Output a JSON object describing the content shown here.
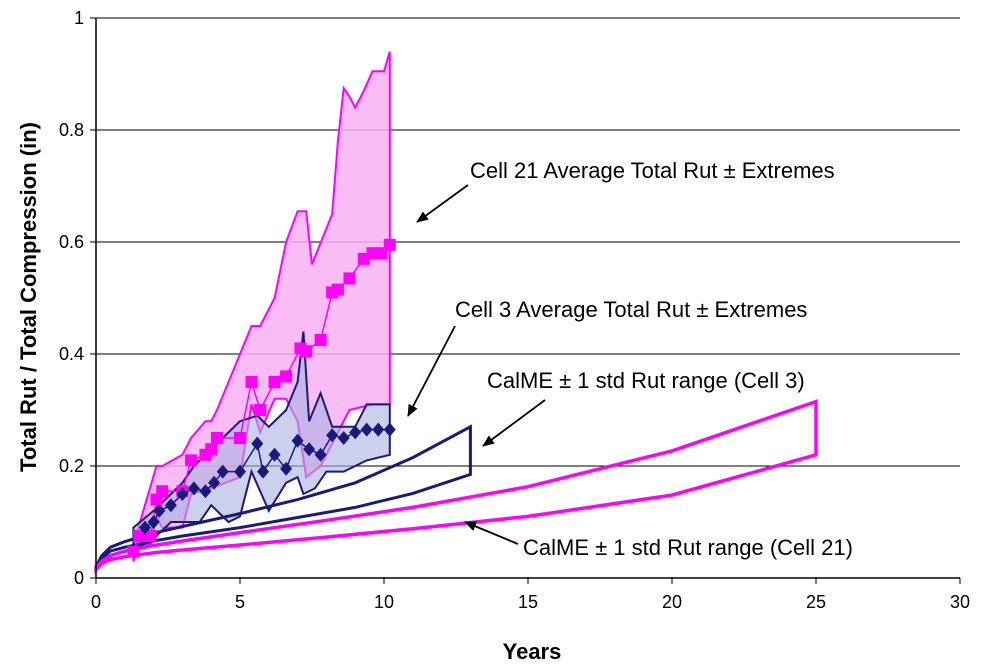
{
  "chart_data": {
    "type": "line",
    "title": "",
    "xlabel": "Years",
    "ylabel": "Total Rut / Total Compression (in)",
    "xlim": [
      0,
      30
    ],
    "ylim": [
      0,
      1
    ],
    "x_ticks": [
      "0",
      "5",
      "10",
      "15",
      "20",
      "25",
      "30"
    ],
    "y_ticks": [
      "0",
      "0.2",
      "0.4",
      "0.6",
      "0.8",
      "1"
    ],
    "grid": "horizontal",
    "colors": {
      "cell21": "#ff00ff",
      "cell21_fill": "#f9b0f3",
      "cell3": "#1a1a7a",
      "cell3_fill": "#a8b3df"
    },
    "series": [
      {
        "name": "Cell 21 Average Total Rut ± Extremes",
        "marker": "square",
        "points": [
          [
            1.3,
            0.047
          ],
          [
            1.5,
            0.075
          ],
          [
            1.7,
            0.075
          ],
          [
            1.9,
            0.075
          ],
          [
            2.1,
            0.14
          ],
          [
            2.3,
            0.155
          ],
          [
            3.0,
            0.155
          ],
          [
            3.3,
            0.21
          ],
          [
            3.8,
            0.22
          ],
          [
            4.0,
            0.23
          ],
          [
            4.2,
            0.25
          ],
          [
            5.0,
            0.25
          ],
          [
            5.4,
            0.35
          ],
          [
            5.7,
            0.3
          ],
          [
            6.2,
            0.35
          ],
          [
            6.6,
            0.36
          ],
          [
            7.1,
            0.41
          ],
          [
            7.3,
            0.405
          ],
          [
            7.8,
            0.425
          ],
          [
            8.2,
            0.51
          ],
          [
            8.4,
            0.515
          ],
          [
            8.8,
            0.535
          ],
          [
            9.3,
            0.57
          ],
          [
            9.6,
            0.58
          ],
          [
            9.9,
            0.58
          ],
          [
            10.2,
            0.595
          ]
        ],
        "upper": [
          [
            1.3,
            0.06
          ],
          [
            2.1,
            0.2
          ],
          [
            2.3,
            0.2
          ],
          [
            3.0,
            0.22
          ],
          [
            3.3,
            0.25
          ],
          [
            3.8,
            0.28
          ],
          [
            4.0,
            0.28
          ],
          [
            4.2,
            0.3
          ],
          [
            5.0,
            0.4
          ],
          [
            5.4,
            0.45
          ],
          [
            5.7,
            0.45
          ],
          [
            6.2,
            0.5
          ],
          [
            6.6,
            0.6
          ],
          [
            7.0,
            0.655
          ],
          [
            7.3,
            0.655
          ],
          [
            7.5,
            0.56
          ],
          [
            8.2,
            0.65
          ],
          [
            8.4,
            0.78
          ],
          [
            8.6,
            0.875
          ],
          [
            8.8,
            0.86
          ],
          [
            9.0,
            0.84
          ],
          [
            9.3,
            0.87
          ],
          [
            9.6,
            0.905
          ],
          [
            10.0,
            0.905
          ],
          [
            10.2,
            0.94
          ]
        ],
        "lower": [
          [
            1.3,
            0.03
          ],
          [
            1.5,
            0.06
          ],
          [
            1.9,
            0.06
          ],
          [
            2.1,
            0.11
          ],
          [
            2.3,
            0.09
          ],
          [
            3.0,
            0.09
          ],
          [
            3.3,
            0.15
          ],
          [
            4.0,
            0.16
          ],
          [
            5.0,
            0.18
          ],
          [
            5.4,
            0.31
          ],
          [
            5.7,
            0.26
          ],
          [
            6.2,
            0.32
          ],
          [
            6.6,
            0.32
          ],
          [
            7.0,
            0.28
          ],
          [
            7.3,
            0.18
          ],
          [
            7.8,
            0.2
          ],
          [
            8.2,
            0.24
          ],
          [
            8.8,
            0.3
          ],
          [
            9.6,
            0.31
          ],
          [
            10.2,
            0.31
          ]
        ]
      },
      {
        "name": "Cell 3 Average Total Rut ± Extremes",
        "marker": "diamond",
        "points": [
          [
            1.7,
            0.09
          ],
          [
            2.0,
            0.1
          ],
          [
            2.2,
            0.12
          ],
          [
            2.6,
            0.13
          ],
          [
            3.0,
            0.15
          ],
          [
            3.4,
            0.16
          ],
          [
            3.8,
            0.155
          ],
          [
            4.1,
            0.17
          ],
          [
            4.4,
            0.19
          ],
          [
            5.0,
            0.19
          ],
          [
            5.6,
            0.24
          ],
          [
            5.8,
            0.19
          ],
          [
            6.2,
            0.22
          ],
          [
            6.6,
            0.195
          ],
          [
            7.0,
            0.245
          ],
          [
            7.4,
            0.23
          ],
          [
            7.8,
            0.22
          ],
          [
            8.2,
            0.255
          ],
          [
            8.6,
            0.25
          ],
          [
            9.0,
            0.26
          ],
          [
            9.4,
            0.265
          ],
          [
            9.8,
            0.265
          ],
          [
            10.2,
            0.265
          ]
        ],
        "upper": [
          [
            1.3,
            0.09
          ],
          [
            2.0,
            0.12
          ],
          [
            2.6,
            0.15
          ],
          [
            3.0,
            0.17
          ],
          [
            3.4,
            0.2
          ],
          [
            4.0,
            0.23
          ],
          [
            4.6,
            0.26
          ],
          [
            5.0,
            0.28
          ],
          [
            5.6,
            0.29
          ],
          [
            6.0,
            0.27
          ],
          [
            6.6,
            0.3
          ],
          [
            7.0,
            0.35
          ],
          [
            7.2,
            0.44
          ],
          [
            7.4,
            0.28
          ],
          [
            7.8,
            0.33
          ],
          [
            8.2,
            0.27
          ],
          [
            8.6,
            0.27
          ],
          [
            9.0,
            0.27
          ],
          [
            9.4,
            0.31
          ],
          [
            10.2,
            0.31
          ]
        ],
        "lower": [
          [
            1.3,
            0.05
          ],
          [
            2.0,
            0.07
          ],
          [
            2.6,
            0.1
          ],
          [
            3.0,
            0.1
          ],
          [
            3.6,
            0.1
          ],
          [
            4.0,
            0.13
          ],
          [
            4.6,
            0.1
          ],
          [
            5.0,
            0.11
          ],
          [
            5.4,
            0.19
          ],
          [
            6.0,
            0.12
          ],
          [
            6.6,
            0.17
          ],
          [
            7.0,
            0.18
          ],
          [
            7.2,
            0.15
          ],
          [
            7.6,
            0.16
          ],
          [
            8.0,
            0.19
          ],
          [
            8.6,
            0.19
          ],
          [
            9.4,
            0.21
          ],
          [
            10.2,
            0.22
          ]
        ]
      },
      {
        "name": "CalME ± 1 std Rut range (Cell 3)",
        "upper": [
          [
            0,
            0.02
          ],
          [
            0.2,
            0.04
          ],
          [
            0.5,
            0.055
          ],
          [
            1,
            0.065
          ],
          [
            2,
            0.08
          ],
          [
            3,
            0.092
          ],
          [
            5,
            0.115
          ],
          [
            7,
            0.14
          ],
          [
            9,
            0.17
          ],
          [
            11,
            0.215
          ],
          [
            13,
            0.27
          ]
        ],
        "lower": [
          [
            0,
            0.018
          ],
          [
            0.2,
            0.035
          ],
          [
            0.5,
            0.048
          ],
          [
            1,
            0.055
          ],
          [
            2,
            0.066
          ],
          [
            3,
            0.075
          ],
          [
            5,
            0.09
          ],
          [
            7,
            0.108
          ],
          [
            9,
            0.126
          ],
          [
            11,
            0.151
          ],
          [
            13,
            0.185
          ]
        ]
      },
      {
        "name": "CalME ± 1 std Rut range (Cell 21)",
        "upper": [
          [
            0,
            0.018
          ],
          [
            0.2,
            0.03
          ],
          [
            0.5,
            0.04
          ],
          [
            1,
            0.048
          ],
          [
            2,
            0.058
          ],
          [
            3,
            0.066
          ],
          [
            5,
            0.081
          ],
          [
            8,
            0.103
          ],
          [
            11,
            0.126
          ],
          [
            15,
            0.163
          ],
          [
            20,
            0.227
          ],
          [
            25,
            0.315
          ]
        ],
        "lower": [
          [
            0,
            0.015
          ],
          [
            0.2,
            0.026
          ],
          [
            0.5,
            0.033
          ],
          [
            1,
            0.038
          ],
          [
            2,
            0.045
          ],
          [
            3,
            0.05
          ],
          [
            5,
            0.059
          ],
          [
            8,
            0.073
          ],
          [
            11,
            0.088
          ],
          [
            15,
            0.11
          ],
          [
            20,
            0.148
          ],
          [
            25,
            0.22
          ]
        ]
      }
    ],
    "annotations": [
      {
        "text": "Cell 21 Average Total Rut ± Extremes"
      },
      {
        "text": "Cell 3 Average Total Rut ± Extremes"
      },
      {
        "text": "CalME ± 1 std Rut range (Cell 3)"
      },
      {
        "text": "CalME ± 1 std Rut range (Cell 21)"
      }
    ]
  }
}
